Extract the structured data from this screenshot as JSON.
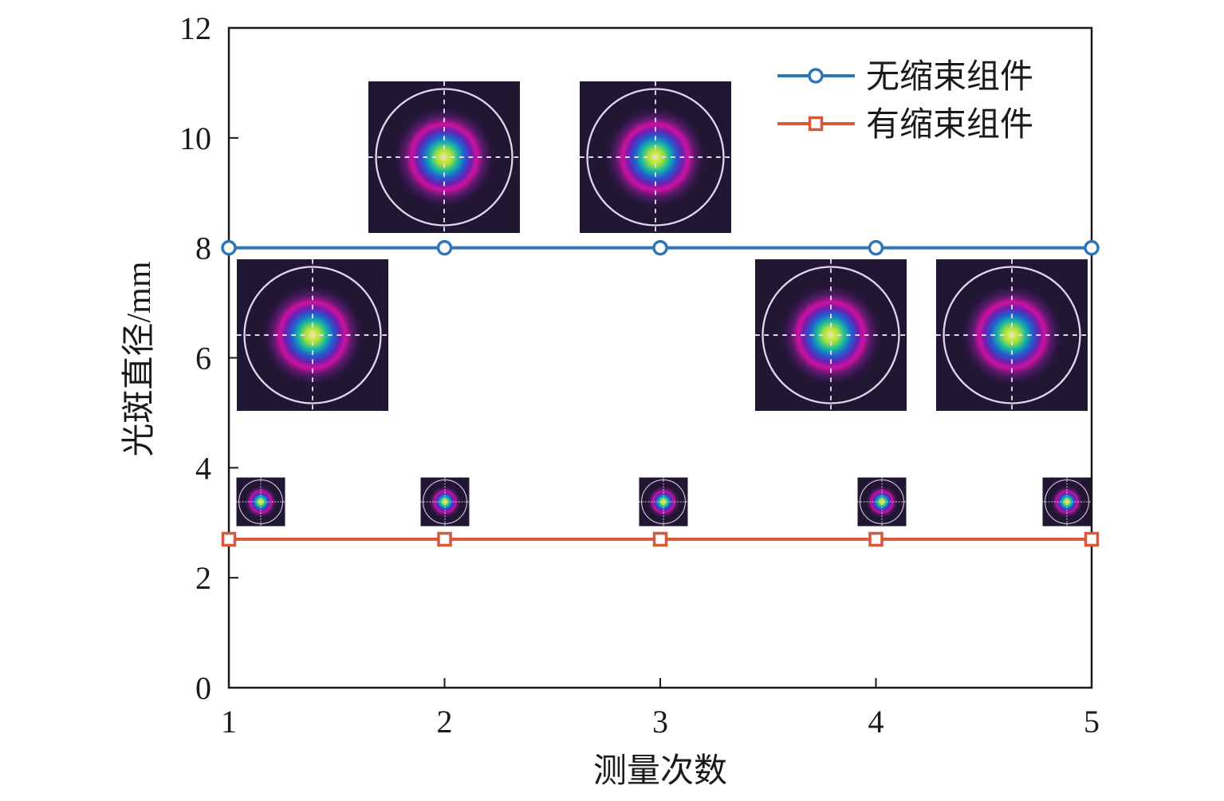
{
  "chart_data": {
    "type": "line",
    "x": [
      1,
      2,
      3,
      4,
      5
    ],
    "xlim": [
      1,
      5
    ],
    "ylim": [
      0,
      12
    ],
    "xticks": [
      "1",
      "2",
      "3",
      "4",
      "5"
    ],
    "yticks": [
      "0",
      "2",
      "4",
      "6",
      "8",
      "10",
      "12"
    ],
    "xlabel": "测量次数",
    "ylabel": "光斑直径/mm",
    "grid": false,
    "legend_position": "top-right",
    "series": [
      {
        "name": "无缩束组件",
        "values": [
          8,
          8,
          8,
          8,
          8
        ],
        "color": "#2e75b6",
        "marker": "circle"
      },
      {
        "name": "有缩束组件",
        "values": [
          2.7,
          2.7,
          2.7,
          2.7,
          2.7
        ],
        "color": "#d9573b",
        "marker": "square"
      }
    ],
    "inset_images": {
      "description_free": true,
      "large_count": 5,
      "small_count": 5
    }
  }
}
